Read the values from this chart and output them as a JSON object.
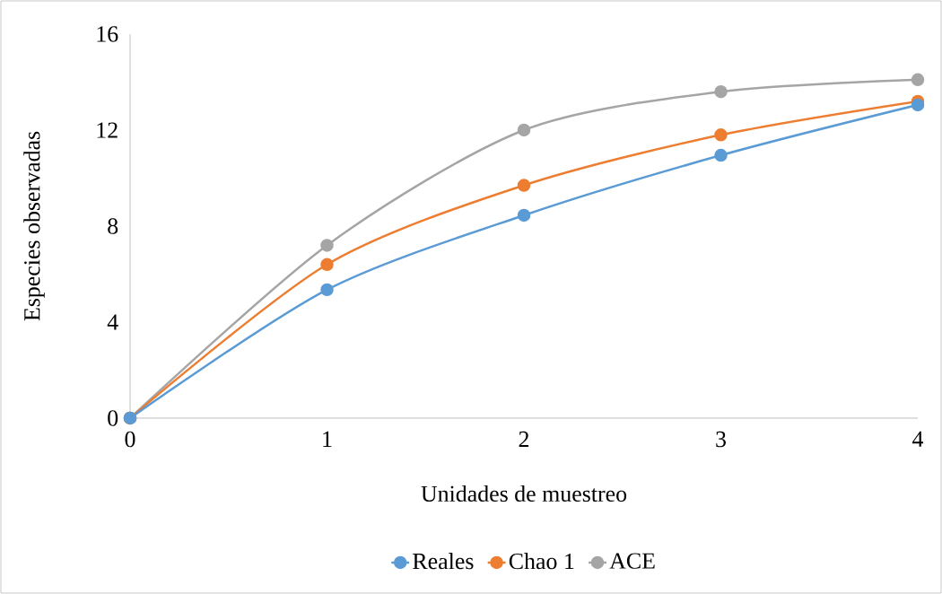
{
  "chart_data": {
    "type": "line",
    "xlabel": "Unidades de muestreo",
    "ylabel": "Especies observadas",
    "x": [
      0,
      1,
      2,
      3,
      4
    ],
    "series": [
      {
        "name": "Reales",
        "color": "#5b9bd5",
        "values": [
          0,
          5.35,
          8.45,
          10.95,
          13.05
        ]
      },
      {
        "name": "Chao 1",
        "color": "#ed7d31",
        "values": [
          0,
          6.4,
          9.7,
          11.8,
          13.2
        ]
      },
      {
        "name": "ACE",
        "color": "#a5a5a5",
        "values": [
          0,
          7.2,
          12.0,
          13.6,
          14.1
        ]
      }
    ],
    "xlim": [
      0,
      4
    ],
    "xticks": [
      0,
      1,
      2,
      3,
      4
    ],
    "ylim": [
      0,
      16
    ],
    "yticks": [
      0,
      4,
      8,
      12,
      16
    ],
    "legend": "bottom",
    "marker": "circle",
    "line_style": "solid"
  }
}
